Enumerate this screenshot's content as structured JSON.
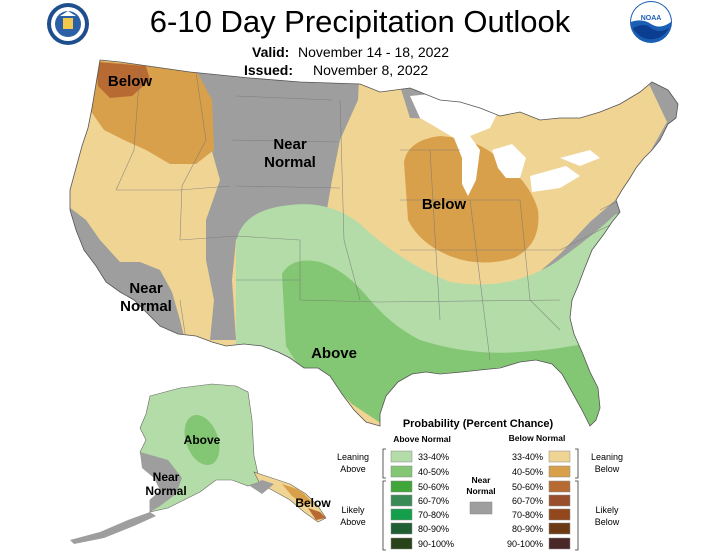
{
  "header": {
    "title": "6-10 Day Precipitation Outlook",
    "valid_label": "Valid:",
    "valid_dates": "November 14 - 18, 2022",
    "issued_label": "Issued:",
    "issued_date": "November 8, 2022",
    "left_logo": "doc-seal-icon",
    "right_logo": "noaa-logo-icon",
    "noaa_text": "NOAA"
  },
  "map_labels": {
    "below_nw": "Below",
    "near_normal_n": [
      "Near",
      "Normal"
    ],
    "below_mw": "Below",
    "near_normal_sw": [
      "Near",
      "Normal"
    ],
    "above_south": "Above",
    "above_alaska": "Above",
    "near_normal_ak": [
      "Near",
      "Normal"
    ],
    "below_se_alaska": "Below"
  },
  "colors": {
    "near_normal": "#9e9e9e",
    "above_33_40": "#b3dca8",
    "above_40_50": "#83c673",
    "above_50_60": "#41a63a",
    "above_60_70": "#3a8a55",
    "above_70_80": "#14a04a",
    "above_80_90": "#205f34",
    "above_90_100": "#284317",
    "below_33_40": "#f0d494",
    "below_40_50": "#d8a04b",
    "below_50_60": "#b86a33",
    "below_60_70": "#9a4f2c",
    "below_70_80": "#93471c",
    "below_80_90": "#6b3a15",
    "below_90_100": "#4a2828"
  },
  "legend": {
    "title": "Probability (Percent Chance)",
    "above_header": "Above Normal",
    "below_header": "Below Normal",
    "leaning_above": [
      "Leaning",
      "Above"
    ],
    "likely_above": [
      "Likely",
      "Above"
    ],
    "leaning_below": [
      "Leaning",
      "Below"
    ],
    "likely_below": [
      "Likely",
      "Below"
    ],
    "near_normal": [
      "Near",
      "Normal"
    ],
    "ranges": [
      "33-40%",
      "40-50%",
      "50-60%",
      "60-70%",
      "70-80%",
      "80-90%",
      "90-100%"
    ]
  }
}
